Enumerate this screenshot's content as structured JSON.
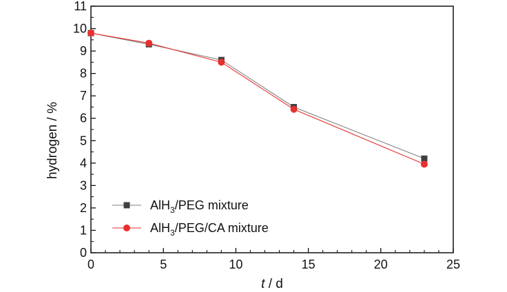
{
  "chart_data": {
    "type": "line",
    "title": "",
    "xlabel": {
      "italic": "t",
      "rest": " / d"
    },
    "ylabel": "hydrogen / %",
    "xlim": [
      0,
      25
    ],
    "ylim": [
      0,
      11
    ],
    "xticks": [
      0,
      5,
      10,
      15,
      20,
      25
    ],
    "yticks": [
      0,
      1,
      2,
      3,
      4,
      5,
      6,
      7,
      8,
      9,
      10,
      11
    ],
    "grid": false,
    "legend_position": "bottom-left",
    "series": [
      {
        "name": {
          "a": "AlH",
          "sub": "3",
          "b": "/PEG mixture"
        },
        "color": "#808080",
        "marker": "square",
        "marker_color": "#404040",
        "x": [
          0,
          4,
          9,
          14,
          23
        ],
        "y": [
          9.8,
          9.3,
          8.6,
          6.5,
          4.2
        ]
      },
      {
        "name": {
          "a": "AlH",
          "sub": "3",
          "b": "/PEG/CA mixture"
        },
        "color": "#e8302e",
        "marker": "circle",
        "marker_color": "#e8302e",
        "x": [
          0,
          4,
          9,
          14,
          23
        ],
        "y": [
          9.8,
          9.35,
          8.5,
          6.4,
          3.95
        ]
      }
    ]
  }
}
